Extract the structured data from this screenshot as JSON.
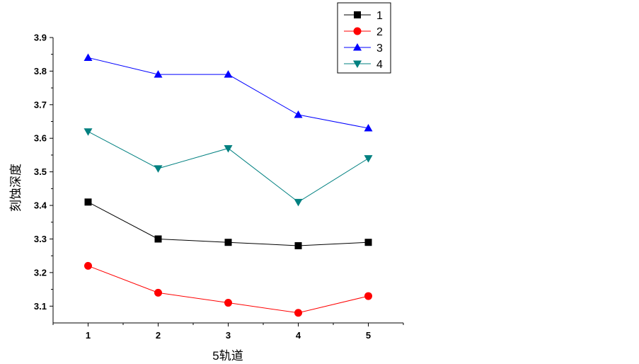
{
  "chart_data": {
    "type": "line",
    "xlabel": "5轨道",
    "ylabel": "刻蚀深度",
    "x": [
      1,
      2,
      3,
      4,
      5
    ],
    "x_tick_labels": [
      "1",
      "2",
      "3",
      "4",
      "5"
    ],
    "xlim": [
      0.5,
      5.5
    ],
    "ylim": [
      3.05,
      3.9
    ],
    "y_ticks": [
      3.1,
      3.2,
      3.3,
      3.4,
      3.5,
      3.6,
      3.7,
      3.8,
      3.9
    ],
    "y_tick_labels": [
      "3.1",
      "3.2",
      "3.3",
      "3.4",
      "3.5",
      "3.6",
      "3.7",
      "3.8",
      "3.9"
    ],
    "grid": false,
    "legend_position": "top-right",
    "series": [
      {
        "name": "1",
        "values": [
          3.41,
          3.3,
          3.29,
          3.28,
          3.29
        ],
        "color": "#000000",
        "marker": "square"
      },
      {
        "name": "2",
        "values": [
          3.22,
          3.14,
          3.11,
          3.08,
          3.13
        ],
        "color": "#ff0000",
        "marker": "circle"
      },
      {
        "name": "3",
        "values": [
          3.84,
          3.79,
          3.79,
          3.67,
          3.63
        ],
        "color": "#0000ff",
        "marker": "triangle-up"
      },
      {
        "name": "4",
        "values": [
          3.62,
          3.51,
          3.57,
          3.41,
          3.54
        ],
        "color": "#008080",
        "marker": "triangle-down"
      }
    ]
  }
}
